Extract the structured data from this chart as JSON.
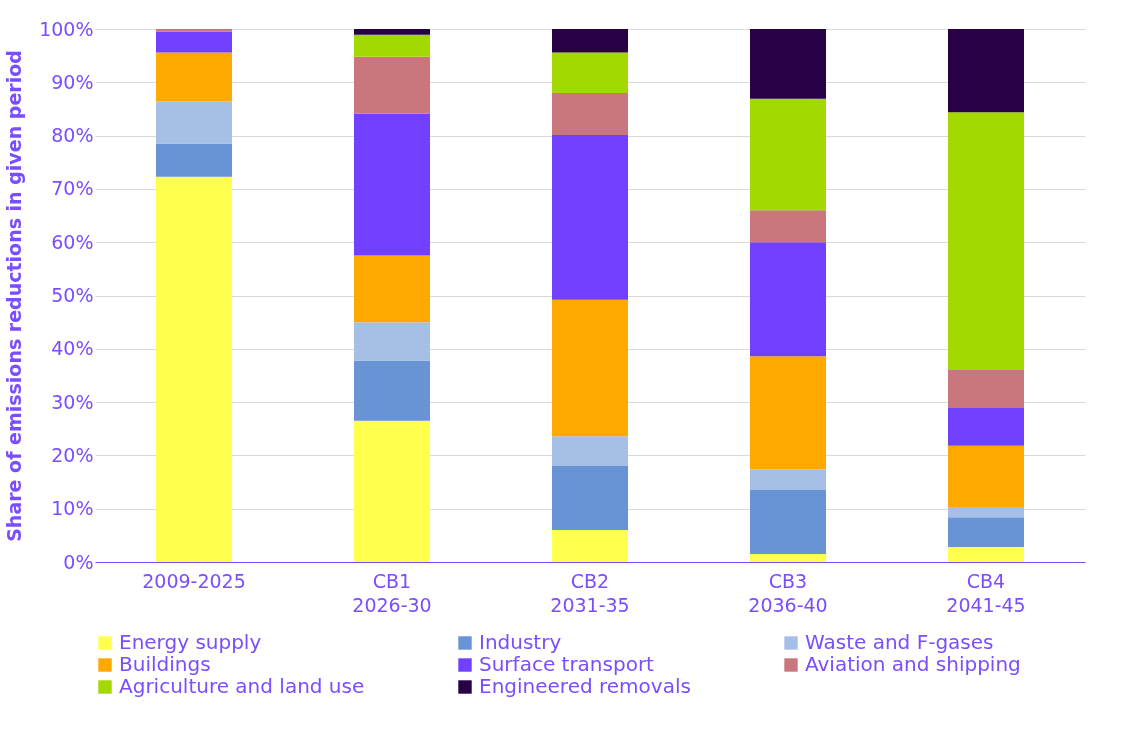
{
  "chart_data": {
    "type": "bar",
    "stacked": true,
    "ylabel": "Share of emissions reductions in given period",
    "categories": [
      "2009-2025",
      "CB1\n2026-30",
      "CB2\n2031-35",
      "CB3\n2036-40",
      "CB4\n2041-45"
    ],
    "series": [
      {
        "name": "Energy supply",
        "color": "#ffff4d",
        "values": [
          72.3,
          26.5,
          6.0,
          1.5,
          2.8
        ]
      },
      {
        "name": "Industry",
        "color": "#6894d6",
        "values": [
          6.2,
          11.3,
          12.0,
          12.0,
          5.6
        ]
      },
      {
        "name": "Waste and F-gases",
        "color": "#a6bfe6",
        "values": [
          7.9,
          7.2,
          5.6,
          3.9,
          1.8
        ]
      },
      {
        "name": "Buildings",
        "color": "#ffa800",
        "values": [
          9.2,
          12.5,
          25.6,
          21.2,
          11.6
        ]
      },
      {
        "name": "Surface transport",
        "color": "#7140ff",
        "values": [
          3.9,
          26.6,
          30.9,
          21.4,
          7.1
        ]
      },
      {
        "name": "Aviation and shipping",
        "color": "#c9777c",
        "values": [
          0.5,
          10.7,
          7.9,
          6.0,
          7.1
        ]
      },
      {
        "name": "Agriculture and land use",
        "color": "#a3d900",
        "values": [
          0,
          4.1,
          7.6,
          20.9,
          48.4
        ]
      },
      {
        "name": "Engineered removals",
        "color": "#280046",
        "values": [
          0,
          1.1,
          4.4,
          13.1,
          15.6
        ]
      }
    ],
    "ylim": [
      0,
      100
    ],
    "yticks": [
      {
        "value": 0,
        "label": "0%"
      },
      {
        "value": 10,
        "label": "10%"
      },
      {
        "value": 20,
        "label": "20%"
      },
      {
        "value": 30,
        "label": "30%"
      },
      {
        "value": 40,
        "label": "40%"
      },
      {
        "value": 50,
        "label": "50%"
      },
      {
        "value": 60,
        "label": "60%"
      },
      {
        "value": 70,
        "label": "70%"
      },
      {
        "value": 80,
        "label": "80%"
      },
      {
        "value": 90,
        "label": "90%"
      },
      {
        "value": 100,
        "label": "100%"
      }
    ],
    "grid": "y",
    "legend": "bottom"
  }
}
